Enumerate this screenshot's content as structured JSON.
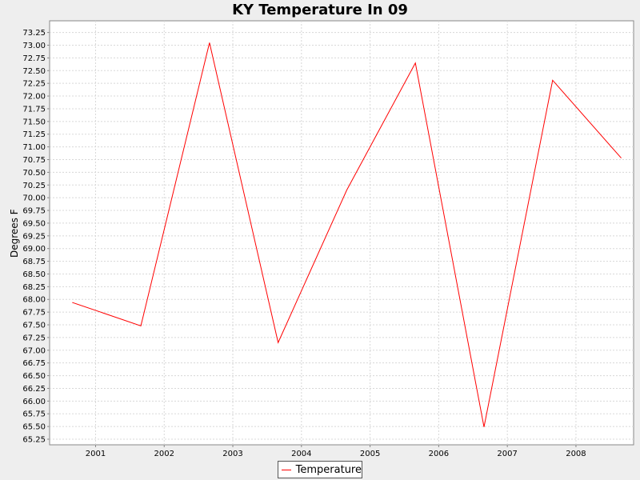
{
  "chart_data": {
    "type": "line",
    "title": "KY Temperature In 09",
    "xlabel": "",
    "ylabel": "Degrees F",
    "categories": [
      "2001",
      "2002",
      "2003",
      "2004",
      "2005",
      "2006",
      "2007",
      "2008"
    ],
    "x": [
      2000.66,
      2001.66,
      2002.66,
      2003.66,
      2004.66,
      2005.66,
      2006.66,
      2007.66,
      2008.66
    ],
    "series": [
      {
        "name": "Temperature",
        "color": "#ff0000",
        "values": [
          67.94,
          67.48,
          73.05,
          67.15,
          70.15,
          72.65,
          65.49,
          72.31,
          70.78
        ]
      }
    ],
    "xlim": [
      2000.33,
      2008.84
    ],
    "ylim": [
      65.14,
      73.48
    ],
    "yticks": [
      "65.25",
      "65.50",
      "65.75",
      "66.00",
      "66.25",
      "66.50",
      "66.75",
      "67.00",
      "67.25",
      "67.50",
      "67.75",
      "68.00",
      "68.25",
      "68.50",
      "68.75",
      "69.00",
      "69.25",
      "69.50",
      "69.75",
      "70.00",
      "70.25",
      "70.50",
      "70.75",
      "71.00",
      "71.25",
      "71.50",
      "71.75",
      "72.00",
      "72.25",
      "72.50",
      "72.75",
      "73.00",
      "73.25"
    ],
    "grid": true,
    "legend_position": "bottom",
    "colors": {
      "background": "#eeeeee",
      "plot": "#ffffff",
      "grid": "#d8d8d8",
      "line": "#ff0000"
    }
  }
}
